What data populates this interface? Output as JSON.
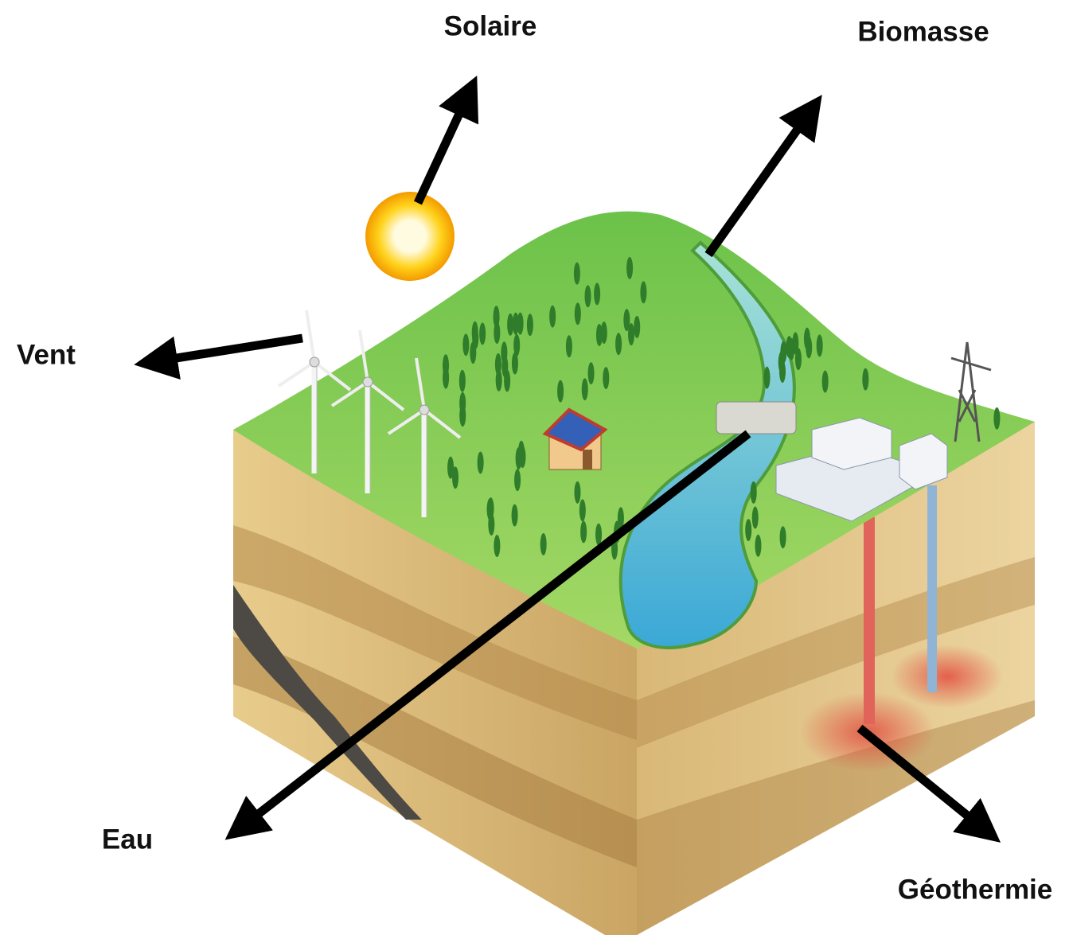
{
  "annotations": [
    {
      "label": "Solaire"
    },
    {
      "label": "Biomasse"
    },
    {
      "label": "Vent"
    },
    {
      "label": "Eau"
    },
    {
      "label": "Géothermie"
    }
  ]
}
